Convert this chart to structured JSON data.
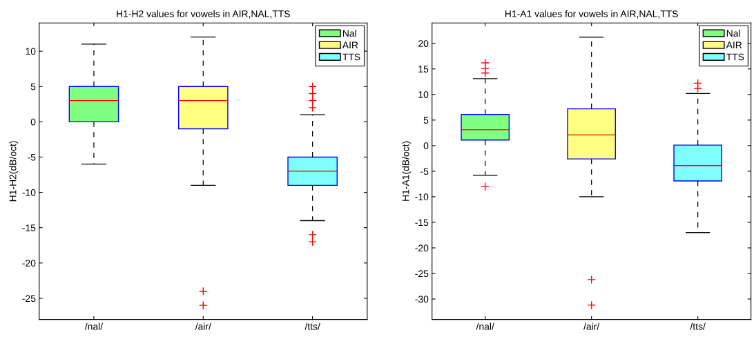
{
  "chart_data": [
    {
      "type": "box",
      "title": "H1-H2 values for vowels in AIR,NAL,TTS",
      "ylabel": "H1-H2(dB/oct)",
      "categories": [
        "/nal/",
        "/air/",
        "/tts/"
      ],
      "ylim": [
        -28,
        14
      ],
      "yticks": [
        -25,
        -20,
        -15,
        -10,
        -5,
        0,
        5,
        10
      ],
      "grid": false,
      "legend": "top right",
      "series": [
        {
          "name": "Nal",
          "color": "#80ff80",
          "boxes": [
            {
              "low": -6,
              "q1": 0,
              "median": 3,
              "q3": 5,
              "high": 11
            },
            null,
            null
          ]
        },
        {
          "name": "AIR",
          "color": "#ffff80",
          "boxes": [
            null,
            {
              "low": -9,
              "q1": -1,
              "median": 3,
              "q3": 5,
              "high": 12,
              "outliers": [
                -24,
                -26
              ]
            },
            null
          ]
        },
        {
          "name": "TTS",
          "color": "#80ffff",
          "boxes": [
            null,
            null,
            {
              "low": -14,
              "q1": -9,
              "median": -7,
              "q3": -5,
              "high": 1,
              "outliers": [
                2,
                3,
                4,
                5,
                -16,
                -17
              ]
            }
          ]
        }
      ]
    },
    {
      "type": "box",
      "title": "H1-A1 values for vowels in AIR,NAL,TTS",
      "ylabel": "H1-A1(dB/oct)",
      "categories": [
        "/nal/",
        "/air/",
        "/tts/"
      ],
      "ylim": [
        -34,
        24
      ],
      "yticks": [
        -30,
        -25,
        -20,
        -15,
        -10,
        -5,
        0,
        5,
        10,
        15,
        20
      ],
      "grid": false,
      "legend": "top right",
      "series": [
        {
          "name": "Nal",
          "color": "#80ff80",
          "boxes": [
            {
              "low": -5.8,
              "q1": 1.1,
              "median": 3.1,
              "q3": 6.1,
              "high": 13.1,
              "outliers": [
                14.2,
                15.1,
                16.2,
                -8
              ]
            },
            null,
            null
          ]
        },
        {
          "name": "AIR",
          "color": "#ffff80",
          "boxes": [
            null,
            {
              "low": -10,
              "q1": -2.6,
              "median": 2.1,
              "q3": 7.2,
              "high": 21.2,
              "outliers": [
                -26.2,
                -31.2
              ]
            },
            null
          ]
        },
        {
          "name": "TTS",
          "color": "#80ffff",
          "boxes": [
            null,
            null,
            {
              "low": -17,
              "q1": -6.9,
              "median": -3.9,
              "q3": 0.1,
              "high": 10.2,
              "outliers": [
                11.2,
                12.2
              ]
            }
          ]
        }
      ]
    }
  ]
}
